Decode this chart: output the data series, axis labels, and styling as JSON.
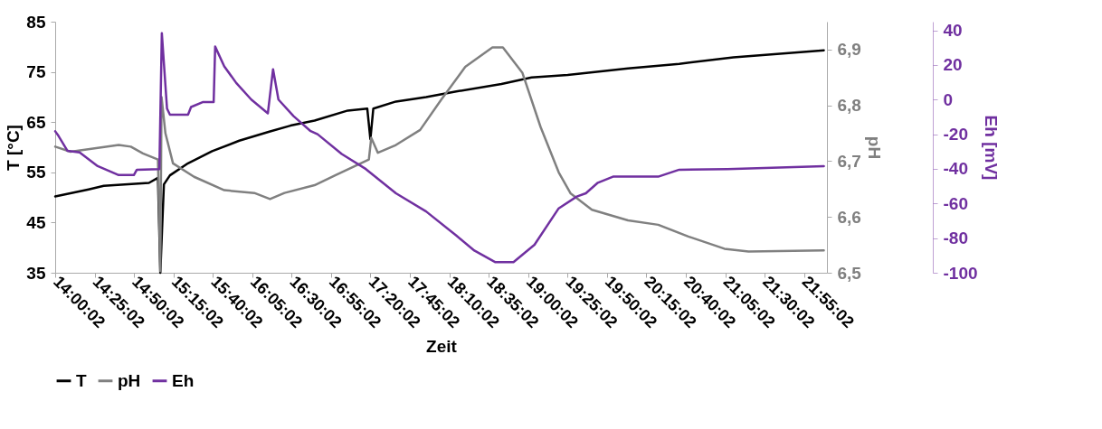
{
  "chart_data": {
    "type": "line",
    "xlabel": "Zeit",
    "ylabel": "T [°C]",
    "y2label": "pH",
    "y3label": "Eh [mV]",
    "legend": "bottom",
    "grid": false,
    "xlim": [
      14.0006,
      22.16
    ],
    "xticks": [
      {
        "value": 14.0006,
        "label": "14:00:02"
      },
      {
        "value": 14.4172,
        "label": "14:25:02"
      },
      {
        "value": 14.8339,
        "label": "14:50:02"
      },
      {
        "value": 15.2506,
        "label": "15:15:02"
      },
      {
        "value": 15.6672,
        "label": "15:40:02"
      },
      {
        "value": 16.0839,
        "label": "16:05:02"
      },
      {
        "value": 16.5006,
        "label": "16:30:02"
      },
      {
        "value": 16.9172,
        "label": "16:55:02"
      },
      {
        "value": 17.3339,
        "label": "17:20:02"
      },
      {
        "value": 17.7506,
        "label": "17:45:02"
      },
      {
        "value": 18.1672,
        "label": "18:10:02"
      },
      {
        "value": 18.5839,
        "label": "18:35:02"
      },
      {
        "value": 19.0006,
        "label": "19:00:02"
      },
      {
        "value": 19.4172,
        "label": "19:25:02"
      },
      {
        "value": 19.8339,
        "label": "19:50:02"
      },
      {
        "value": 20.2506,
        "label": "20:15:02"
      },
      {
        "value": 20.6672,
        "label": "20:40:02"
      },
      {
        "value": 21.0839,
        "label": "21:05:02"
      },
      {
        "value": 21.5006,
        "label": "21:30:02"
      },
      {
        "value": 21.9172,
        "label": "21:55:02"
      }
    ],
    "ylim": [
      35,
      85
    ],
    "yticks": [
      35,
      45,
      55,
      65,
      75,
      85
    ],
    "y2lim": [
      6.5,
      6.95
    ],
    "y2ticks": [
      {
        "value": 6.5,
        "label": "6,5"
      },
      {
        "value": 6.6,
        "label": "6,6"
      },
      {
        "value": 6.7,
        "label": "6,7"
      },
      {
        "value": 6.8,
        "label": "6,8"
      },
      {
        "value": 6.9,
        "label": "6,9"
      }
    ],
    "y3lim": [
      -100,
      45
    ],
    "y3ticks": [
      -100,
      -80,
      -60,
      -40,
      -20,
      0,
      20,
      40
    ],
    "series": [
      {
        "name": "T",
        "color": "#000000",
        "x": [
          14.001,
          14.354,
          14.514,
          14.992,
          15.087,
          15.112,
          15.15,
          15.214,
          15.405,
          15.66,
          15.947,
          16.265,
          16.488,
          16.743,
          17.094,
          17.3,
          17.333,
          17.364,
          17.603,
          17.922,
          18.241,
          18.719,
          19.037,
          19.419,
          20.057,
          20.598,
          21.171,
          22.127
        ],
        "values": [
          50.2,
          51.6,
          52.3,
          52.9,
          53.9,
          35,
          52.6,
          54.4,
          56.8,
          59.2,
          61.3,
          63.1,
          64.3,
          65.3,
          67.3,
          67.7,
          61.6,
          67.7,
          69.1,
          70.0,
          71.1,
          72.6,
          73.9,
          74.4,
          75.7,
          76.6,
          77.9,
          79.3
        ]
      },
      {
        "name": "pH",
        "color": "#808080",
        "axis": "y2",
        "x": [
          14.001,
          14.163,
          14.672,
          14.8,
          14.928,
          15.087,
          15.112,
          15.125,
          15.166,
          15.246,
          15.469,
          15.788,
          16.106,
          16.272,
          16.425,
          16.743,
          16.966,
          17.317,
          17.342,
          17.412,
          17.603,
          17.859,
          18.081,
          18.336,
          18.623,
          18.734,
          18.941,
          19.133,
          19.324,
          19.451,
          19.675,
          20.057,
          20.376,
          20.694,
          21.076,
          21.331,
          22.127
        ],
        "values": [
          6.726,
          6.717,
          6.729,
          6.726,
          6.714,
          6.703,
          6.503,
          6.815,
          6.75,
          6.696,
          6.672,
          6.648,
          6.643,
          6.632,
          6.643,
          6.657,
          6.675,
          6.703,
          6.742,
          6.715,
          6.729,
          6.756,
          6.81,
          6.869,
          6.904,
          6.904,
          6.858,
          6.761,
          6.68,
          6.642,
          6.613,
          6.594,
          6.586,
          6.565,
          6.543,
          6.538,
          6.54
        ]
      },
      {
        "name": "Eh",
        "color": "#7030a0",
        "axis": "y3",
        "x": [
          14.001,
          14.036,
          14.131,
          14.259,
          14.45,
          14.672,
          14.832,
          14.864,
          15.102,
          15.128,
          15.183,
          15.214,
          15.405,
          15.437,
          15.565,
          15.676,
          15.692,
          15.788,
          15.915,
          16.074,
          16.249,
          16.304,
          16.361,
          16.521,
          16.696,
          16.775,
          17.03,
          17.285,
          17.603,
          17.922,
          18.241,
          18.432,
          18.655,
          18.846,
          19.068,
          19.324,
          19.515,
          19.611,
          19.738,
          19.898,
          20.376,
          20.598,
          21.108,
          22.127
        ],
        "values": [
          -18.3,
          -21,
          -29.6,
          -30.5,
          -38.4,
          -43.6,
          -43.6,
          -40.5,
          -40.1,
          38.4,
          -5.2,
          -8.7,
          -8.7,
          -4.3,
          -1.4,
          -1.4,
          30.6,
          19.2,
          9.6,
          0,
          -7.9,
          17.5,
          0,
          -9.6,
          -18,
          -20,
          -31.4,
          -40.1,
          -54.1,
          -64.6,
          -78.5,
          -87.2,
          -93.9,
          -93.9,
          -83.8,
          -62.8,
          -56,
          -54.1,
          -48.0,
          -44.5,
          -44.5,
          -40.5,
          -40.1,
          -38.4
        ]
      }
    ]
  }
}
